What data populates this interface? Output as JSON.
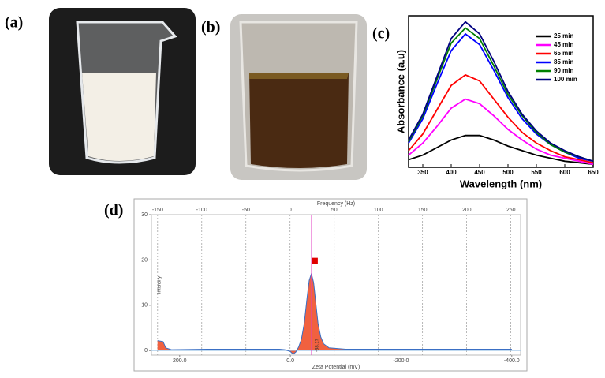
{
  "panels": [
    "(a)",
    "(b)",
    "(c)",
    "(d)"
  ],
  "chart_data": [
    {
      "type": "line",
      "xlabel": "Wavelength (nm)",
      "ylabel": "Absorbance (a.u)",
      "x": [
        325,
        350,
        375,
        400,
        425,
        450,
        475,
        500,
        525,
        550,
        575,
        600,
        625,
        650
      ],
      "xlim": [
        325,
        650
      ],
      "xticks": [
        350,
        400,
        450,
        500,
        550,
        600,
        650
      ],
      "ylim": [
        0,
        1
      ],
      "legend": "upper right",
      "series": [
        {
          "name": "25 min",
          "color": "#000000",
          "values": [
            0.05,
            0.08,
            0.13,
            0.18,
            0.21,
            0.21,
            0.18,
            0.14,
            0.11,
            0.08,
            0.06,
            0.04,
            0.03,
            0.02
          ]
        },
        {
          "name": "45 min",
          "color": "#ff00ff",
          "values": [
            0.08,
            0.16,
            0.27,
            0.39,
            0.45,
            0.42,
            0.34,
            0.25,
            0.18,
            0.12,
            0.08,
            0.06,
            0.04,
            0.02
          ]
        },
        {
          "name": "65 min",
          "color": "#ff0000",
          "values": [
            0.11,
            0.22,
            0.38,
            0.54,
            0.61,
            0.57,
            0.45,
            0.33,
            0.23,
            0.16,
            0.11,
            0.07,
            0.05,
            0.03
          ]
        },
        {
          "name": "85 min",
          "color": "#0000ff",
          "values": [
            0.16,
            0.32,
            0.55,
            0.77,
            0.88,
            0.81,
            0.64,
            0.46,
            0.32,
            0.22,
            0.15,
            0.1,
            0.06,
            0.04
          ]
        },
        {
          "name": "90 min",
          "color": "#008000",
          "values": [
            0.17,
            0.34,
            0.58,
            0.82,
            0.92,
            0.85,
            0.67,
            0.48,
            0.34,
            0.23,
            0.15,
            0.1,
            0.07,
            0.04
          ]
        },
        {
          "name": "100 min",
          "color": "#000080",
          "values": [
            0.18,
            0.35,
            0.6,
            0.85,
            0.96,
            0.88,
            0.7,
            0.5,
            0.35,
            0.24,
            0.16,
            0.11,
            0.07,
            0.04
          ]
        }
      ]
    },
    {
      "type": "area",
      "xlabel": "Zeta Potential (mV)",
      "x2label": "Frequency (Hz)",
      "ylabel": "Intensity",
      "x": [
        240,
        230,
        225,
        215,
        150,
        100,
        50,
        20,
        10,
        0,
        -5,
        -10,
        -15,
        -20,
        -25,
        -30,
        -34,
        -38,
        -42,
        -46,
        -50,
        -55,
        -60,
        -70,
        -100,
        -200,
        -300,
        -400
      ],
      "values": [
        2.2,
        2.0,
        0.6,
        0.2,
        0.3,
        0.3,
        0.3,
        0.3,
        0.2,
        -0.2,
        -0.8,
        -0.3,
        0.8,
        2.5,
        6.0,
        11.5,
        15.5,
        17.0,
        15.0,
        10.5,
        6.0,
        3.0,
        1.5,
        0.6,
        0.3,
        0.3,
        0.3,
        0.3
      ],
      "color": "#3a6fc4",
      "fill": "#f0502a",
      "xlim": [
        251,
        -416
      ],
      "xticks": [
        {
          "value": 200,
          "label": "200.0"
        },
        {
          "value": 0,
          "label": "0.0"
        },
        {
          "value": -200,
          "label": "-200.0"
        },
        {
          "value": -400,
          "label": "-400.0"
        }
      ],
      "x2lim": [
        -157,
        261
      ],
      "x2ticks": [
        -150,
        -100,
        -50,
        0,
        50,
        100,
        150,
        200,
        250
      ],
      "ylim": [
        -1,
        30
      ],
      "yticks": [
        0,
        10,
        20,
        30
      ],
      "grid": true,
      "annotation": {
        "value": -38.17,
        "label": "-38.17"
      }
    }
  ]
}
